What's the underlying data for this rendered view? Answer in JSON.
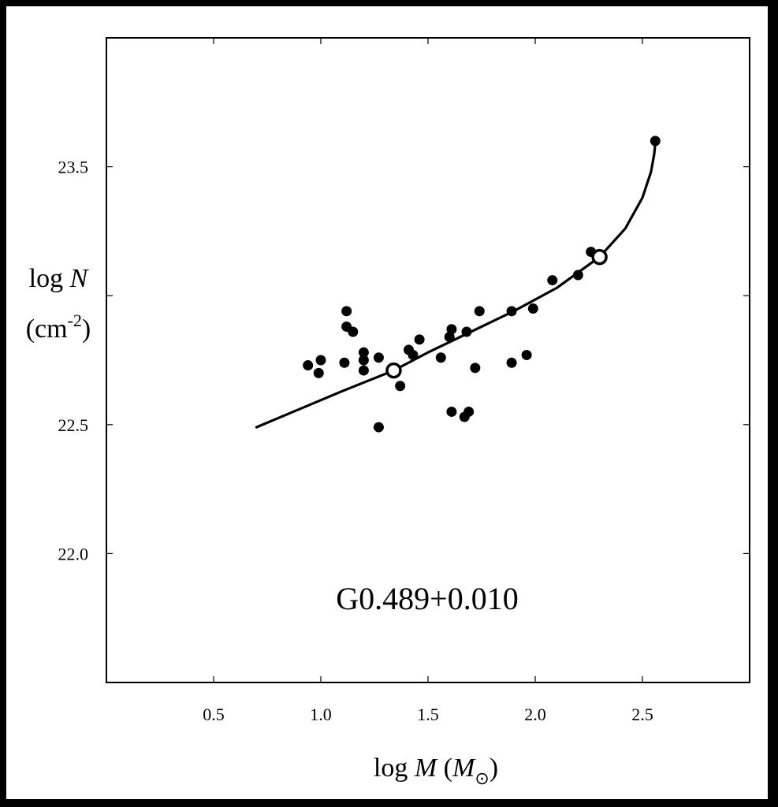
{
  "chart_data": {
    "type": "scatter",
    "title": "",
    "annotation": "G0.489+0.010",
    "xlabel": {
      "prefix": "log ",
      "var": "M",
      "unit_open": "(",
      "unit_var": "M",
      "unit_sub": "⊙",
      "unit_close": ")"
    },
    "ylabel": {
      "line1_prefix": "log ",
      "line1_var": "N",
      "line2_base": "(cm",
      "line2_sup": "-2",
      "line2_close": ")"
    },
    "xlim": [
      0.0,
      3.0
    ],
    "ylim": [
      21.5,
      24.0
    ],
    "x_ticks": [
      0.5,
      1.0,
      1.5,
      2.0,
      2.5
    ],
    "x_tick_labels": [
      "0.5",
      "1.0",
      "1.5",
      "2.0",
      "2.5"
    ],
    "y_ticks": [
      22.0,
      22.5,
      23.0,
      23.5
    ],
    "y_tick_labels": [
      "22.0",
      "22.5",
      "",
      "23.5"
    ],
    "grid": false,
    "series": [
      {
        "kind": "points",
        "marker": "filled-circle",
        "x": [
          0.94,
          1.0,
          0.99,
          1.12,
          1.12,
          1.15,
          1.11,
          1.2,
          1.2,
          1.2,
          1.27,
          1.27,
          1.37,
          1.41,
          1.43,
          1.46,
          1.56,
          1.61,
          1.6,
          1.68,
          1.72,
          1.74,
          1.61,
          1.67,
          1.69,
          1.89,
          1.89,
          1.96,
          1.99,
          2.08,
          2.2,
          2.26,
          2.56
        ],
        "y": [
          22.73,
          22.75,
          22.7,
          22.94,
          22.88,
          22.86,
          22.74,
          22.78,
          22.75,
          22.71,
          22.76,
          22.49,
          22.65,
          22.79,
          22.77,
          22.83,
          22.76,
          22.87,
          22.84,
          22.86,
          22.72,
          22.94,
          22.55,
          22.53,
          22.55,
          22.94,
          22.74,
          22.77,
          22.95,
          23.06,
          23.08,
          23.17,
          23.6
        ]
      },
      {
        "kind": "points",
        "marker": "open-circle",
        "x": [
          1.34,
          2.3
        ],
        "y": [
          22.71,
          23.15
        ]
      },
      {
        "kind": "line",
        "x": [
          0.7,
          0.9,
          1.1,
          1.34,
          1.5,
          1.7,
          1.9,
          2.1,
          2.3,
          2.42,
          2.5,
          2.54,
          2.555,
          2.56
        ],
        "y": [
          22.49,
          22.56,
          22.63,
          22.71,
          22.78,
          22.86,
          22.94,
          23.03,
          23.15,
          23.26,
          23.38,
          23.48,
          23.55,
          23.59
        ]
      }
    ]
  }
}
